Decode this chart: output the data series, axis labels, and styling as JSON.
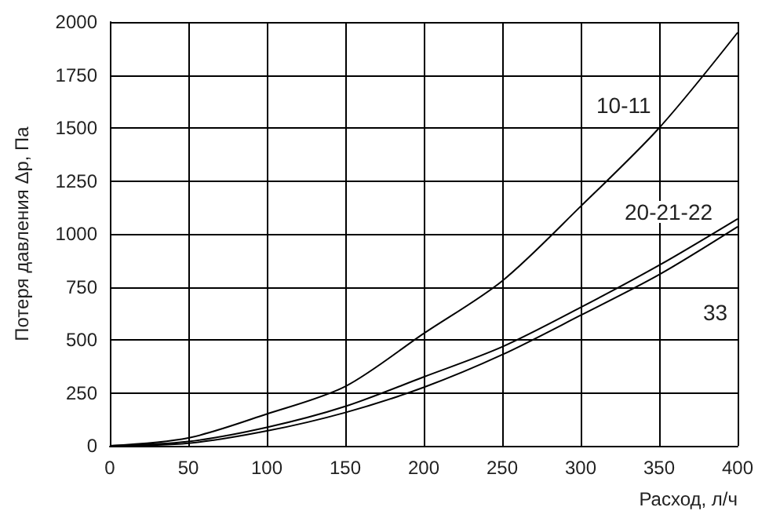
{
  "chart_data": {
    "type": "line",
    "xlabel": "Расход, л/ч",
    "ylabel": "Потеря давления Δp, Па",
    "x": [
      0,
      50,
      100,
      150,
      200,
      250,
      300,
      350,
      400
    ],
    "series": [
      {
        "color": "#000000",
        "values": [
          0,
          37,
          150,
          280,
          530,
          778,
          1130,
          1500,
          1950
        ]
      },
      {
        "color": "#000000",
        "values": [
          0,
          20,
          87,
          186,
          325,
          467,
          653,
          852,
          1071
        ]
      },
      {
        "color": "#000000",
        "values": [
          0,
          12,
          70,
          157,
          276,
          430,
          616,
          808,
          1034
        ]
      }
    ],
    "annotations": [
      "10-11",
      "20-21-22",
      "33"
    ],
    "xlim": [
      0,
      400
    ],
    "ylim": [
      0,
      2000
    ],
    "xticks": [
      0,
      50,
      100,
      150,
      200,
      250,
      300,
      350,
      400
    ],
    "yticks": [
      0,
      250,
      500,
      750,
      1000,
      1250,
      1500,
      1750,
      2000
    ],
    "grid": true,
    "marker": "none",
    "line_style": "solid"
  }
}
